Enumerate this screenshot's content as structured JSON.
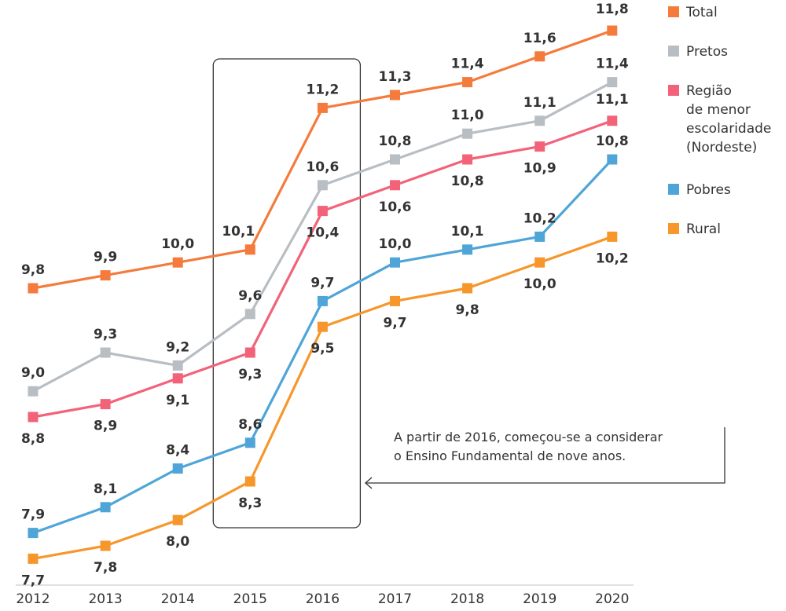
{
  "chart_data": {
    "type": "line",
    "categories": [
      "2012",
      "2013",
      "2014",
      "2015",
      "2016",
      "2017",
      "2018",
      "2019",
      "2020"
    ],
    "ylim": [
      7.4,
      12.0
    ],
    "grid": false,
    "legend_position": "right",
    "series": [
      {
        "name": "Total",
        "color": "#F47B3B",
        "values": [
          9.8,
          9.9,
          10.0,
          10.1,
          11.2,
          11.3,
          11.4,
          11.6,
          11.8
        ],
        "labels": [
          "9,8",
          "9,9",
          "10,0",
          "10,1",
          "11,2",
          "11,3",
          "11,4",
          "11,6",
          "11,8"
        ]
      },
      {
        "name": "Pretos",
        "color": "#B8BEC3",
        "values": [
          9.0,
          9.3,
          9.2,
          9.6,
          10.6,
          10.8,
          11.0,
          11.1,
          11.4
        ],
        "labels": [
          "9,0",
          "9,3",
          "9,2",
          "9,6",
          "10,6",
          "10,8",
          "11,0",
          "11,1",
          "11,4"
        ]
      },
      {
        "name": "Região de menor escolaridade (Nordeste)",
        "legend_lines": [
          "Região",
          "de menor",
          "escolaridade",
          "(Nordeste)"
        ],
        "color": "#F2637A",
        "values": [
          8.8,
          8.9,
          9.1,
          9.3,
          10.4,
          10.6,
          10.8,
          10.9,
          11.1
        ],
        "labels": [
          "8,8",
          "8,9",
          "9,1",
          "9,3",
          "10,4",
          "10,6",
          "10,8",
          "10,9",
          "11,1"
        ]
      },
      {
        "name": "Pobres",
        "color": "#4FA5D8",
        "values": [
          7.9,
          8.1,
          8.4,
          8.6,
          9.7,
          10.0,
          10.1,
          10.2,
          10.8
        ],
        "labels": [
          "7,9",
          "8,1",
          "8,4",
          "8,6",
          "9,7",
          "10,0",
          "10,1",
          "10,2",
          "10,8"
        ]
      },
      {
        "name": "Rural",
        "color": "#F7962B",
        "values": [
          7.7,
          7.8,
          8.0,
          8.3,
          9.5,
          9.7,
          9.8,
          10.0,
          10.2
        ],
        "labels": [
          "7,7",
          "7,8",
          "8,0",
          "8,3",
          "9,5",
          "9,7",
          "9,8",
          "10,0",
          "10,2"
        ]
      }
    ],
    "annotation": {
      "lines": [
        "A partir de 2016, começou-se a considerar",
        "o Ensino Fundamental de nove anos."
      ],
      "highlight_categories": [
        "2015",
        "2016"
      ]
    }
  }
}
